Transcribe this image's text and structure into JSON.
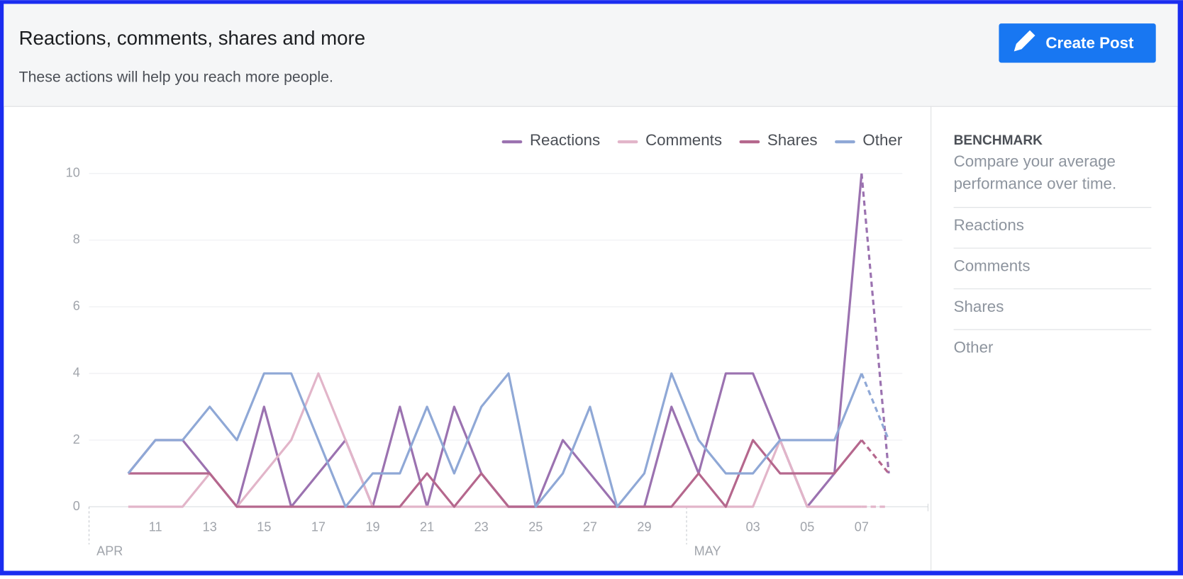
{
  "header": {
    "title": "Reactions, comments, shares and more",
    "subtitle": "These actions will help you reach more people.",
    "button": "Create Post"
  },
  "benchmark": {
    "title": "BENCHMARK",
    "description": [
      "Compare your average",
      "performance over time."
    ],
    "items": [
      "Reactions",
      "Comments",
      "Shares",
      "Other"
    ]
  },
  "chart_data": {
    "type": "line",
    "categories": [
      null,
      "11",
      null,
      "13",
      null,
      "15",
      null,
      "17",
      null,
      "19",
      null,
      "21",
      null,
      "23",
      null,
      "25",
      null,
      "27",
      null,
      "29",
      null,
      null,
      null,
      "03",
      null,
      "05",
      null,
      "07",
      null
    ],
    "x_groups": [
      {
        "label": "APR",
        "start": 0
      },
      {
        "label": "MAY",
        "start": 21
      }
    ],
    "series": [
      {
        "name": "Reactions",
        "color": "#9b72b0",
        "values": [
          1,
          2,
          2,
          1,
          0,
          3,
          0,
          1,
          2,
          0,
          3,
          0,
          3,
          1,
          0,
          0,
          2,
          1,
          0,
          0,
          3,
          1,
          4,
          4,
          2,
          0,
          1,
          10,
          1
        ]
      },
      {
        "name": "Comments",
        "color": "#e2b5c9",
        "values": [
          0,
          0,
          0,
          1,
          0,
          1,
          2,
          4,
          2,
          0,
          0,
          0,
          0,
          0,
          0,
          0,
          0,
          0,
          0,
          0,
          0,
          0,
          0,
          0,
          2,
          0,
          0,
          0,
          0
        ]
      },
      {
        "name": "Shares",
        "color": "#b5678d",
        "values": [
          1,
          1,
          1,
          1,
          0,
          0,
          0,
          0,
          0,
          0,
          0,
          1,
          0,
          1,
          0,
          0,
          0,
          0,
          0,
          0,
          0,
          1,
          0,
          2,
          1,
          1,
          1,
          2,
          1
        ]
      },
      {
        "name": "Other",
        "color": "#8fa8d6",
        "values": [
          1,
          2,
          2,
          3,
          2,
          4,
          4,
          2,
          0,
          1,
          1,
          3,
          1,
          3,
          4,
          0,
          1,
          3,
          0,
          1,
          4,
          2,
          1,
          1,
          2,
          2,
          2,
          4,
          2
        ]
      }
    ],
    "ylim": [
      0,
      10
    ],
    "yticks": [
      0,
      2,
      4,
      6,
      8,
      10
    ],
    "grid": true
  }
}
